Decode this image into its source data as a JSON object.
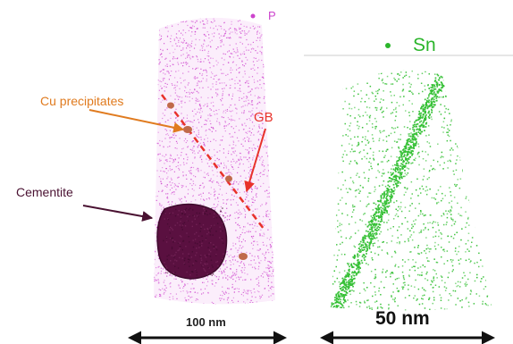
{
  "legend": {
    "left": {
      "dot": "•",
      "label": "P",
      "color": "#cc44cc"
    },
    "right": {
      "dot": "•",
      "label": "Sn",
      "color": "#2bb52b"
    }
  },
  "annotations": {
    "cu_precipitates": "Cu precipitates",
    "gb": "GB",
    "cementite": "Cementite"
  },
  "scale_bars": {
    "left": "100 nm",
    "right": "50 nm"
  },
  "colors": {
    "phosphorus_atoms": "#d04bd0",
    "tin_atoms": "#35c035",
    "cu_precipitate": "#c06a4a",
    "cementite": "#5a1040",
    "grain_boundary": "#e8322a",
    "cu_arrow": "#e07b1f",
    "cementite_arrow": "#4a1232"
  }
}
